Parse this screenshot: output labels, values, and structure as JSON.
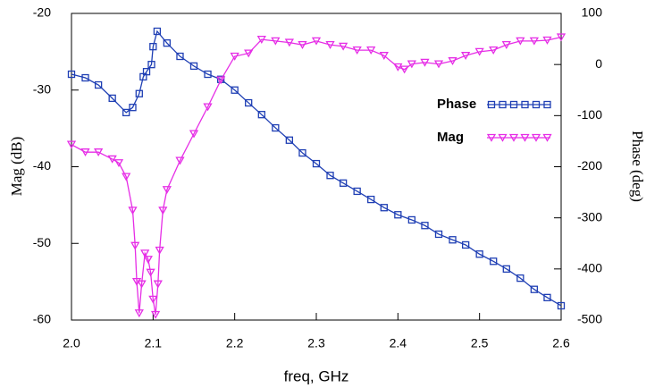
{
  "chart_data": {
    "type": "line",
    "xlabel": "freq, GHz",
    "ylabel": "Mag (dB)",
    "y2label": "Phase (deg)",
    "xlim": [
      2.0,
      2.6
    ],
    "xticks": [
      {
        "value": 2.0,
        "label": "2.0"
      },
      2.1,
      2.2,
      2.3,
      2.4,
      2.5,
      {
        "value": 2.6,
        "label": "2.6"
      }
    ],
    "ylim": [
      -60,
      -20
    ],
    "yticks": [
      -20,
      -30,
      -40,
      -50,
      -60
    ],
    "y2lim": [
      -500,
      100
    ],
    "y2ticks": [
      100,
      0,
      -100,
      -200,
      -300,
      -400,
      -500
    ],
    "grid": false,
    "legend": "upper right",
    "series": [
      {
        "name": "Phase",
        "color": "#1f3fb4",
        "axis": "y2",
        "marker": "square",
        "x": [
          2.0,
          2.017,
          2.033,
          2.05,
          2.067,
          2.075,
          2.083,
          2.088,
          2.092,
          2.098,
          2.1,
          2.105,
          2.117,
          2.133,
          2.15,
          2.167,
          2.183,
          2.2,
          2.217,
          2.233,
          2.25,
          2.267,
          2.283,
          2.3,
          2.317,
          2.333,
          2.35,
          2.367,
          2.383,
          2.4,
          2.417,
          2.433,
          2.45,
          2.467,
          2.483,
          2.5,
          2.517,
          2.533,
          2.55,
          2.567,
          2.583,
          2.6
        ],
        "values": [
          -19,
          -26,
          -40,
          -66,
          -94,
          -84,
          -57,
          -24,
          -14,
          0,
          35,
          65,
          42,
          16,
          -3,
          -19,
          -29,
          -50,
          -75,
          -98,
          -124,
          -148,
          -173,
          -194,
          -217,
          -232,
          -248,
          -264,
          -280,
          -294,
          -304,
          -315,
          -332,
          -343,
          -353,
          -371,
          -385,
          -400,
          -418,
          -440,
          -456,
          -472
        ]
      },
      {
        "name": "Mag",
        "color": "#e62ee6",
        "marker": "triangle-down",
        "x": [
          2.0,
          2.017,
          2.033,
          2.05,
          2.058,
          2.067,
          2.075,
          2.078,
          2.08,
          2.083,
          2.086,
          2.09,
          2.094,
          2.097,
          2.1,
          2.103,
          2.106,
          2.108,
          2.112,
          2.117,
          2.133,
          2.15,
          2.167,
          2.183,
          2.2,
          2.217,
          2.233,
          2.25,
          2.267,
          2.283,
          2.3,
          2.317,
          2.333,
          2.35,
          2.367,
          2.383,
          2.4,
          2.408,
          2.417,
          2.433,
          2.45,
          2.467,
          2.483,
          2.5,
          2.517,
          2.533,
          2.55,
          2.567,
          2.583,
          2.6
        ],
        "values": [
          -37.1,
          -38.1,
          -38.1,
          -39.0,
          -39.5,
          -41.3,
          -45.7,
          -50.3,
          -55.0,
          -59.1,
          -55.3,
          -51.3,
          -52.1,
          -53.8,
          -57.3,
          -59.3,
          -55.3,
          -50.9,
          -45.7,
          -43.0,
          -39.2,
          -35.7,
          -32.2,
          -28.7,
          -25.6,
          -25.2,
          -23.4,
          -23.6,
          -23.8,
          -24.1,
          -23.6,
          -24.1,
          -24.3,
          -24.8,
          -24.8,
          -25.5,
          -27.0,
          -27.3,
          -26.6,
          -26.4,
          -26.6,
          -26.2,
          -25.5,
          -25.0,
          -24.8,
          -24.1,
          -23.6,
          -23.6,
          -23.5,
          -23.1
        ]
      }
    ]
  }
}
